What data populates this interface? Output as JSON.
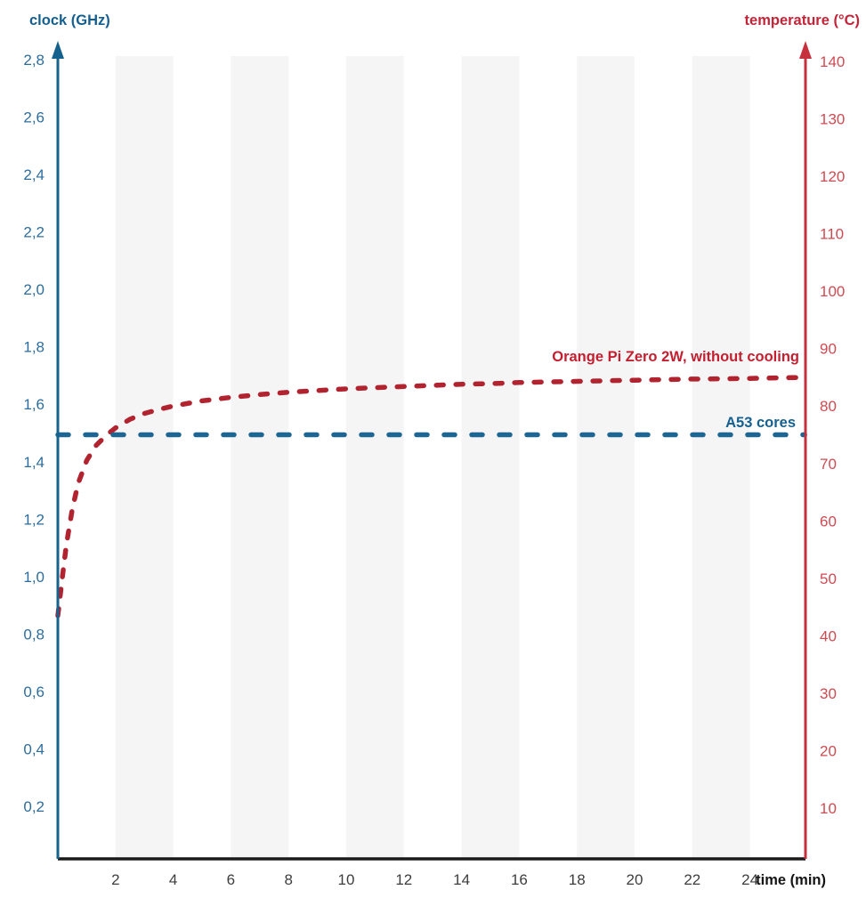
{
  "chart_data": {
    "type": "line",
    "title": "",
    "xlabel": "time (min)",
    "ylabel_left": "clock (GHz)",
    "ylabel_right": "temperature (°C)",
    "xlim": [
      0,
      25.9
    ],
    "left_ylim": [
      0,
      2.8
    ],
    "right_ylim": [
      0,
      140
    ],
    "grid": "vertical-bands-only",
    "legend_position": "inline-right",
    "x_ticks": [
      2,
      4,
      6,
      8,
      10,
      12,
      14,
      16,
      18,
      20,
      22,
      24
    ],
    "left_ticks": {
      "values": [
        2.8,
        2.6,
        2.4,
        2.2,
        2.0,
        1.8,
        1.6,
        1.4,
        1.2,
        1.0,
        0.8,
        0.6,
        0.4,
        0.2
      ],
      "labels": [
        "2,8",
        "2,6",
        "2,4",
        "2,2",
        "2,0",
        "1,8",
        "1,6",
        "1,4",
        "1,2",
        "1,0",
        "0,8",
        "0,6",
        "0,4",
        "0,2"
      ]
    },
    "right_ticks": {
      "values": [
        140,
        130,
        120,
        110,
        100,
        90,
        80,
        70,
        60,
        50,
        40,
        30,
        20,
        10
      ],
      "labels": [
        "140",
        "130",
        "120",
        "110",
        "100",
        "90",
        "80",
        "70",
        "60",
        "50",
        "40",
        "30",
        "20",
        "10"
      ]
    },
    "bands_x": [
      [
        2,
        4
      ],
      [
        6,
        8
      ],
      [
        10,
        12
      ],
      [
        14,
        16
      ],
      [
        18,
        20
      ],
      [
        22,
        24
      ]
    ],
    "series": [
      {
        "name": "temperature",
        "label": "Orange Pi Zero 2W, without cooling",
        "axis": "right",
        "style": "dashed",
        "points": [
          [
            0,
            43.5
          ],
          [
            0.15,
            50
          ],
          [
            0.3,
            56
          ],
          [
            0.5,
            62
          ],
          [
            0.7,
            66.5
          ],
          [
            1.0,
            70.5
          ],
          [
            1.3,
            73
          ],
          [
            1.7,
            75
          ],
          [
            2.0,
            76.2
          ],
          [
            2.5,
            77.7
          ],
          [
            3,
            78.7
          ],
          [
            3.5,
            79.4
          ],
          [
            4,
            80
          ],
          [
            5,
            80.9
          ],
          [
            6,
            81.5
          ],
          [
            7,
            82
          ],
          [
            8,
            82.4
          ],
          [
            9,
            82.7
          ],
          [
            10,
            83
          ],
          [
            11,
            83.2
          ],
          [
            12,
            83.4
          ],
          [
            13,
            83.6
          ],
          [
            14,
            83.8
          ],
          [
            15,
            83.9
          ],
          [
            16,
            84.1
          ],
          [
            17,
            84.2
          ],
          [
            18,
            84.3
          ],
          [
            19,
            84.4
          ],
          [
            20,
            84.5
          ],
          [
            21,
            84.6
          ],
          [
            22,
            84.7
          ],
          [
            23,
            84.75
          ],
          [
            24,
            84.8
          ],
          [
            25,
            84.9
          ],
          [
            25.9,
            85
          ]
        ]
      },
      {
        "name": "clock",
        "label": "A53 cores",
        "axis": "left",
        "style": "dashed",
        "points": [
          [
            0,
            1.5
          ],
          [
            25.9,
            1.5
          ]
        ]
      }
    ],
    "colors": {
      "left_axis": "#15628e",
      "left_tick_text": "#2d6d9e",
      "clock_line": "#1d6693",
      "right_axis": "#c5303c",
      "right_tick_text": "#cf4a51",
      "temp_line": "#b22330",
      "x_axis": "#1a1a1a",
      "x_tick_text": "#3d3d3d",
      "band": "#f5f5f5"
    }
  }
}
